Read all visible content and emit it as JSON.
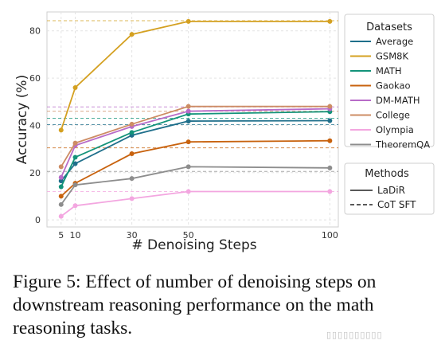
{
  "chart_data": {
    "type": "line",
    "xlabel": "# Denoising Steps",
    "ylabel": "Accuracy (%)",
    "x": [
      5,
      10,
      30,
      50,
      100
    ],
    "xticks": [
      "5",
      "10",
      "30",
      "50",
      "100"
    ],
    "yticks": [
      "0",
      "20",
      "40",
      "60",
      "80"
    ],
    "xlim": [
      0,
      103
    ],
    "ylim": [
      -3,
      88
    ],
    "grid": true,
    "legend_datasets_title": "Datasets",
    "legend_methods_title": "Methods",
    "legend_placement": "right, outside",
    "series": [
      {
        "name": "Average",
        "color": "#1f6f8b",
        "values": [
          16.5,
          23.8,
          35.8,
          41.8,
          42.0
        ],
        "cot": 40.3
      },
      {
        "name": "GSM8K",
        "color": "#d4a020",
        "values": [
          38.0,
          56.0,
          78.5,
          84.0,
          84.0
        ],
        "cot": 84.3
      },
      {
        "name": "MATH",
        "color": "#13937a",
        "values": [
          14.0,
          26.5,
          37.0,
          44.8,
          45.8
        ],
        "cot": 43.0
      },
      {
        "name": "Gaokao",
        "color": "#c8620e",
        "values": [
          10.0,
          15.5,
          28.0,
          33.0,
          33.5
        ],
        "cot": 30.5
      },
      {
        "name": "DM-MATH",
        "color": "#b86cc8",
        "values": [
          18.0,
          31.5,
          39.5,
          46.0,
          47.0
        ],
        "cot": 47.8
      },
      {
        "name": "College",
        "color": "#cd8c64",
        "values": [
          22.5,
          32.5,
          40.5,
          48.0,
          48.0
        ],
        "cot": 46.0
      },
      {
        "name": "Olympia",
        "color": "#f3a6e0",
        "values": [
          1.5,
          6.0,
          9.0,
          12.0,
          12.0
        ],
        "cot": 12.0
      },
      {
        "name": "TheoremQA",
        "color": "#8d8d8d",
        "values": [
          6.5,
          14.8,
          17.5,
          22.5,
          22.0
        ],
        "cot": 20.5
      }
    ],
    "methods": [
      {
        "label": "LaDiR",
        "style": "solid"
      },
      {
        "label": "CoT SFT",
        "style": "dashed"
      }
    ]
  },
  "caption": "Figure 5: Effect of number of denoising steps on downstream reasoning performance on the math reasoning tasks."
}
